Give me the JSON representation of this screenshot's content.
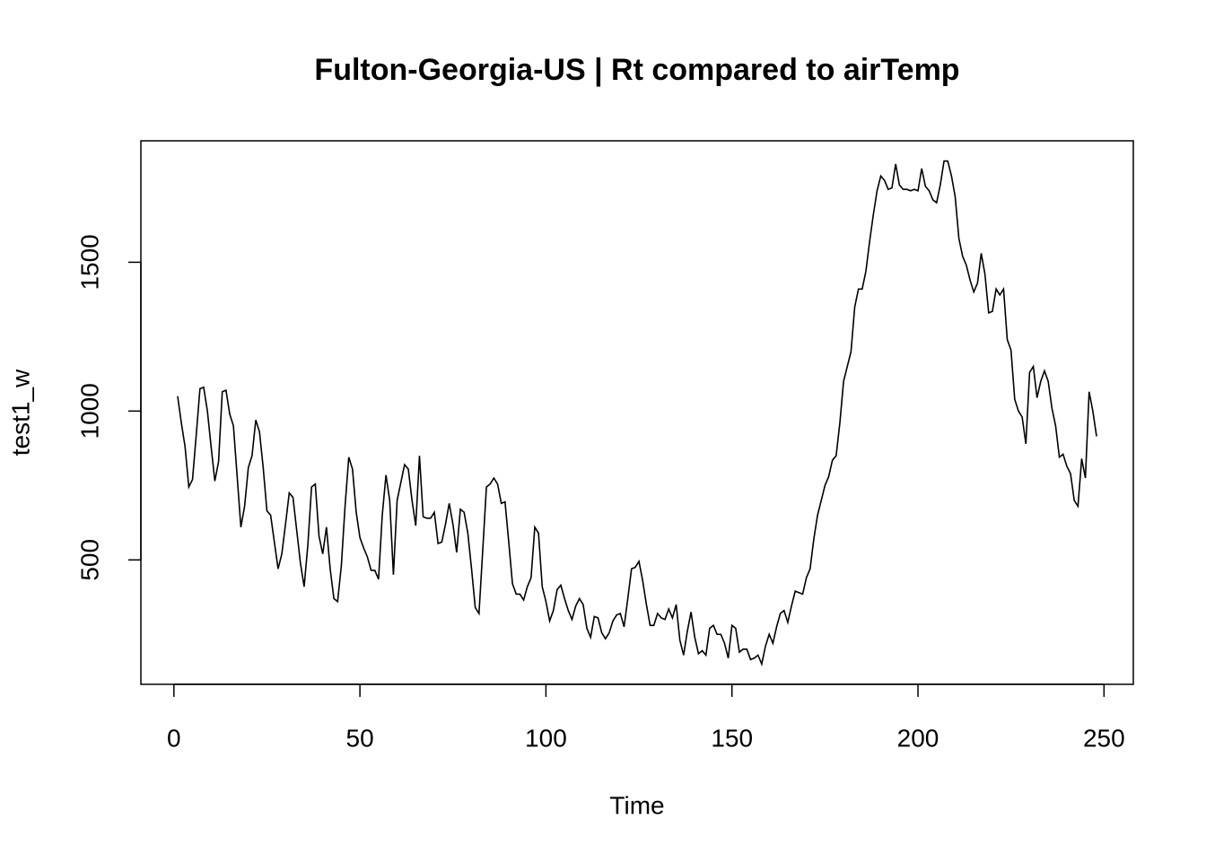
{
  "chart_data": {
    "type": "line",
    "title": "Fulton-Georgia-US | Rt compared to airTemp",
    "xlabel": "Time",
    "ylabel": "test1_w",
    "x": [
      1,
      2,
      3,
      4,
      5,
      6,
      7,
      8,
      9,
      10,
      11,
      12,
      13,
      14,
      15,
      16,
      17,
      18,
      19,
      20,
      21,
      22,
      23,
      24,
      25,
      26,
      27,
      28,
      29,
      30,
      31,
      32,
      33,
      34,
      35,
      36,
      37,
      38,
      39,
      40,
      41,
      42,
      43,
      44,
      45,
      46,
      47,
      48,
      49,
      50,
      51,
      52,
      53,
      54,
      55,
      56,
      57,
      58,
      59,
      60,
      61,
      62,
      63,
      64,
      65,
      66,
      67,
      68,
      69,
      70,
      71,
      72,
      73,
      74,
      75,
      76,
      77,
      78,
      79,
      80,
      81,
      82,
      83,
      84,
      85,
      86,
      87,
      88,
      89,
      90,
      91,
      92,
      93,
      94,
      95,
      96,
      97,
      98,
      99,
      100,
      101,
      102,
      103,
      104,
      105,
      106,
      107,
      108,
      109,
      110,
      111,
      112,
      113,
      114,
      115,
      116,
      117,
      118,
      119,
      120,
      121,
      122,
      123,
      124,
      125,
      126,
      127,
      128,
      129,
      130,
      131,
      132,
      133,
      134,
      135,
      136,
      137,
      138,
      139,
      140,
      141,
      142,
      143,
      144,
      145,
      146,
      147,
      148,
      149,
      150,
      151,
      152,
      153,
      154,
      155,
      156,
      157,
      158,
      159,
      160,
      161,
      162,
      163,
      164,
      165,
      166,
      167,
      168,
      169,
      170,
      171,
      172,
      173,
      174,
      175,
      176,
      177,
      178,
      179,
      180,
      181,
      182,
      183,
      184,
      185,
      186,
      187,
      188,
      189,
      190,
      191,
      192,
      193,
      194,
      195,
      196,
      197,
      198,
      199,
      200,
      201,
      202,
      203,
      204,
      205,
      206,
      207,
      208,
      209,
      210,
      211,
      212,
      213,
      214,
      215,
      216,
      217,
      218,
      219,
      220,
      221,
      222,
      223,
      224,
      225,
      226,
      227,
      228,
      229,
      230,
      231,
      232,
      233,
      234,
      235,
      236,
      237,
      238,
      239,
      240,
      241,
      242,
      243,
      244,
      245,
      246,
      247,
      248
    ],
    "series": [
      {
        "name": "test1_w",
        "color": "#000000",
        "values": [
          1050,
          960,
          880,
          745,
          770,
          920,
          1075,
          1080,
          1000,
          880,
          765,
          830,
          1065,
          1070,
          990,
          950,
          780,
          610,
          680,
          810,
          850,
          970,
          930,
          810,
          665,
          650,
          560,
          470,
          520,
          620,
          725,
          710,
          600,
          490,
          410,
          550,
          745,
          755,
          580,
          520,
          610,
          470,
          370,
          360,
          480,
          680,
          845,
          805,
          660,
          575,
          540,
          510,
          465,
          465,
          435,
          650,
          785,
          700,
          450,
          700,
          760,
          820,
          805,
          700,
          615,
          850,
          645,
          640,
          640,
          660,
          555,
          560,
          620,
          690,
          620,
          525,
          670,
          660,
          590,
          470,
          340,
          320,
          530,
          745,
          755,
          775,
          755,
          690,
          695,
          560,
          420,
          385,
          385,
          365,
          410,
          440,
          610,
          590,
          410,
          360,
          295,
          330,
          400,
          415,
          370,
          330,
          300,
          345,
          370,
          350,
          270,
          240,
          310,
          305,
          255,
          235,
          255,
          295,
          315,
          320,
          275,
          370,
          470,
          475,
          495,
          430,
          350,
          280,
          280,
          320,
          305,
          300,
          335,
          305,
          350,
          230,
          180,
          260,
          325,
          240,
          185,
          195,
          180,
          270,
          280,
          250,
          250,
          220,
          170,
          280,
          270,
          190,
          200,
          200,
          165,
          170,
          180,
          150,
          210,
          250,
          220,
          275,
          320,
          330,
          290,
          345,
          395,
          390,
          385,
          440,
          470,
          570,
          650,
          700,
          750,
          780,
          835,
          850,
          960,
          1100,
          1150,
          1200,
          1350,
          1410,
          1410,
          1470,
          1570,
          1660,
          1740,
          1790,
          1775,
          1745,
          1750,
          1830,
          1760,
          1745,
          1745,
          1740,
          1745,
          1740,
          1815,
          1755,
          1740,
          1710,
          1700,
          1760,
          1840,
          1840,
          1790,
          1720,
          1580,
          1520,
          1490,
          1440,
          1400,
          1430,
          1530,
          1460,
          1330,
          1335,
          1410,
          1390,
          1410,
          1240,
          1205,
          1040,
          1000,
          980,
          890,
          1130,
          1150,
          1045,
          1100,
          1135,
          1100,
          1010,
          950,
          845,
          855,
          815,
          790,
          700,
          680,
          840,
          775,
          1065,
          1000,
          915
        ]
      }
    ],
    "xlim": [
      -8.88,
      257.88
    ],
    "xticks": [
      0,
      50,
      100,
      150,
      200,
      250
    ],
    "ylim": [
      82,
      1908
    ],
    "yticks": [
      500,
      1000,
      1500
    ]
  }
}
